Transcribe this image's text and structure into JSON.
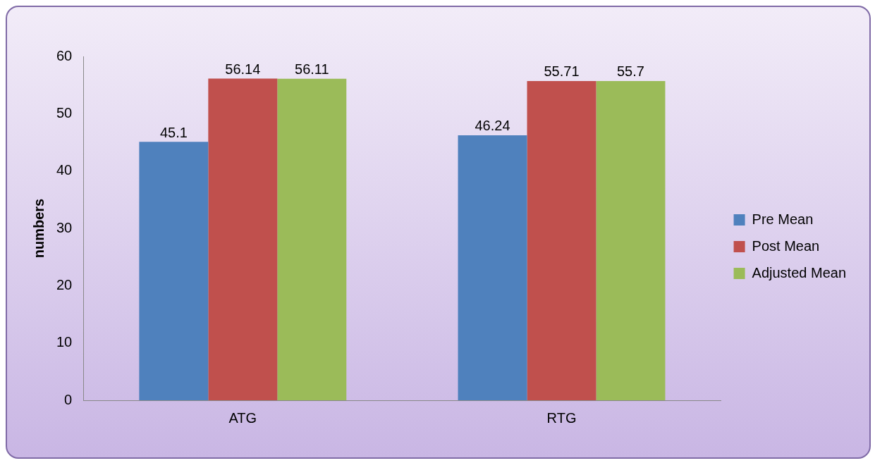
{
  "chart_data": {
    "type": "bar",
    "ylabel": "numbers",
    "categories": [
      "ATG",
      "RTG"
    ],
    "series": [
      {
        "name": "Pre Mean",
        "color": "#4f81bd",
        "values": [
          45.1,
          46.24
        ]
      },
      {
        "name": "Post Mean",
        "color": "#c0504d",
        "values": [
          56.14,
          55.71
        ]
      },
      {
        "name": "Adjusted Mean",
        "color": "#9bbb59",
        "values": [
          56.11,
          55.7
        ]
      }
    ],
    "ylim": [
      0,
      60
    ],
    "yticks": [
      0,
      10,
      20,
      30,
      40,
      50,
      60
    ],
    "data_labels": true,
    "grid": false,
    "legend": "right"
  }
}
